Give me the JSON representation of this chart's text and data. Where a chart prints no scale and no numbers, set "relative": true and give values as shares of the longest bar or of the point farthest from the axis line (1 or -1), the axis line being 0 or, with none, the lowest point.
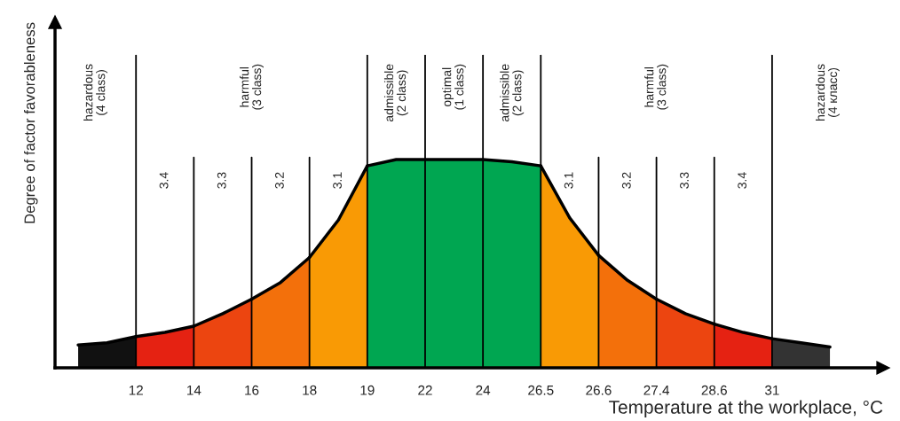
{
  "chart_data": {
    "type": "area",
    "relative": true,
    "xlabel": "Temperature at the workplace, °C",
    "ylabel": "Degree of factor favorableness",
    "categories": [
      null,
      null,
      "12",
      null,
      "14",
      null,
      "16",
      null,
      "18",
      null,
      "19",
      null,
      "22",
      null,
      "24",
      null,
      "26.5",
      null,
      "26.6",
      null,
      "27.4",
      null,
      "28.6",
      null,
      "31",
      null,
      null
    ],
    "series": [
      {
        "color": "#111111",
        "values": [
          0.11,
          0.12,
          0.15,
          null,
          null,
          null,
          null,
          null,
          null,
          null,
          null,
          null,
          null,
          null,
          null,
          null,
          null,
          null,
          null,
          null,
          null,
          null,
          null,
          null,
          null,
          null,
          null
        ]
      },
      {
        "color": "#e52212",
        "values": [
          null,
          null,
          0.15,
          0.17,
          0.2,
          null,
          null,
          null,
          null,
          null,
          null,
          null,
          null,
          null,
          null,
          null,
          null,
          null,
          null,
          null,
          null,
          null,
          null,
          null,
          null,
          null,
          null
        ]
      },
      {
        "color": "#ec4510",
        "values": [
          null,
          null,
          null,
          null,
          0.2,
          0.26,
          0.33,
          null,
          null,
          null,
          null,
          null,
          null,
          null,
          null,
          null,
          null,
          null,
          null,
          null,
          null,
          null,
          null,
          null,
          null,
          null,
          null
        ]
      },
      {
        "color": "#f3700b",
        "values": [
          null,
          null,
          null,
          null,
          null,
          null,
          0.33,
          0.41,
          0.53,
          null,
          null,
          null,
          null,
          null,
          null,
          null,
          null,
          null,
          null,
          null,
          null,
          null,
          null,
          null,
          null,
          null,
          null
        ]
      },
      {
        "color": "#f99a05",
        "values": [
          null,
          null,
          null,
          null,
          null,
          null,
          null,
          null,
          0.53,
          0.71,
          0.97,
          null,
          null,
          null,
          null,
          null,
          null,
          null,
          null,
          null,
          null,
          null,
          null,
          null,
          null,
          null,
          null
        ]
      },
      {
        "color": "#00a651",
        "values": [
          null,
          null,
          null,
          null,
          null,
          null,
          null,
          null,
          null,
          null,
          0.97,
          1.0,
          1.0,
          1.0,
          1.0,
          0.99,
          0.97,
          null,
          null,
          null,
          null,
          null,
          null,
          null,
          null,
          null,
          null
        ]
      },
      {
        "color": "#f99a05",
        "values": [
          null,
          null,
          null,
          null,
          null,
          null,
          null,
          null,
          null,
          null,
          null,
          null,
          null,
          null,
          null,
          null,
          0.97,
          0.72,
          0.54,
          null,
          null,
          null,
          null,
          null,
          null,
          null,
          null
        ]
      },
      {
        "color": "#f3700b",
        "values": [
          null,
          null,
          null,
          null,
          null,
          null,
          null,
          null,
          null,
          null,
          null,
          null,
          null,
          null,
          null,
          null,
          null,
          null,
          0.54,
          0.42,
          0.33,
          null,
          null,
          null,
          null,
          null,
          null
        ]
      },
      {
        "color": "#ec4510",
        "values": [
          null,
          null,
          null,
          null,
          null,
          null,
          null,
          null,
          null,
          null,
          null,
          null,
          null,
          null,
          null,
          null,
          null,
          null,
          null,
          null,
          0.33,
          0.26,
          0.21,
          null,
          null,
          null,
          null
        ]
      },
      {
        "color": "#e52212",
        "values": [
          null,
          null,
          null,
          null,
          null,
          null,
          null,
          null,
          null,
          null,
          null,
          null,
          null,
          null,
          null,
          null,
          null,
          null,
          null,
          null,
          null,
          null,
          0.21,
          0.17,
          0.14,
          null,
          null
        ]
      },
      {
        "color": "#333333",
        "values": [
          null,
          null,
          null,
          null,
          null,
          null,
          null,
          null,
          null,
          null,
          null,
          null,
          null,
          null,
          null,
          null,
          null,
          null,
          null,
          null,
          null,
          null,
          null,
          null,
          0.14,
          0.12,
          0.1
        ]
      }
    ],
    "ref_lines": [
      {
        "axis": "x",
        "value": "12"
      },
      {
        "axis": "x",
        "value": "14"
      },
      {
        "axis": "x",
        "value": "16"
      },
      {
        "axis": "x",
        "value": "18"
      },
      {
        "axis": "x",
        "value": "19"
      },
      {
        "axis": "x",
        "value": "22"
      },
      {
        "axis": "x",
        "value": "24"
      },
      {
        "axis": "x",
        "value": "26.5"
      },
      {
        "axis": "x",
        "value": "26.6"
      },
      {
        "axis": "x",
        "value": "27.4"
      },
      {
        "axis": "x",
        "value": "28.6"
      },
      {
        "axis": "x",
        "value": "31"
      }
    ],
    "annotations": [
      "hazardous\n(4 class)",
      "harmful\n(3 class)",
      "admissible\n(2 class)",
      "optimal\n(1 class)",
      "admissible\n(2 class)",
      "harmful\n(3 class)",
      "hazardous\n(4 класс)",
      "3.4",
      "3.3",
      "3.2",
      "3.1",
      "3.1",
      "3.2",
      "3.3",
      "3.4"
    ]
  }
}
